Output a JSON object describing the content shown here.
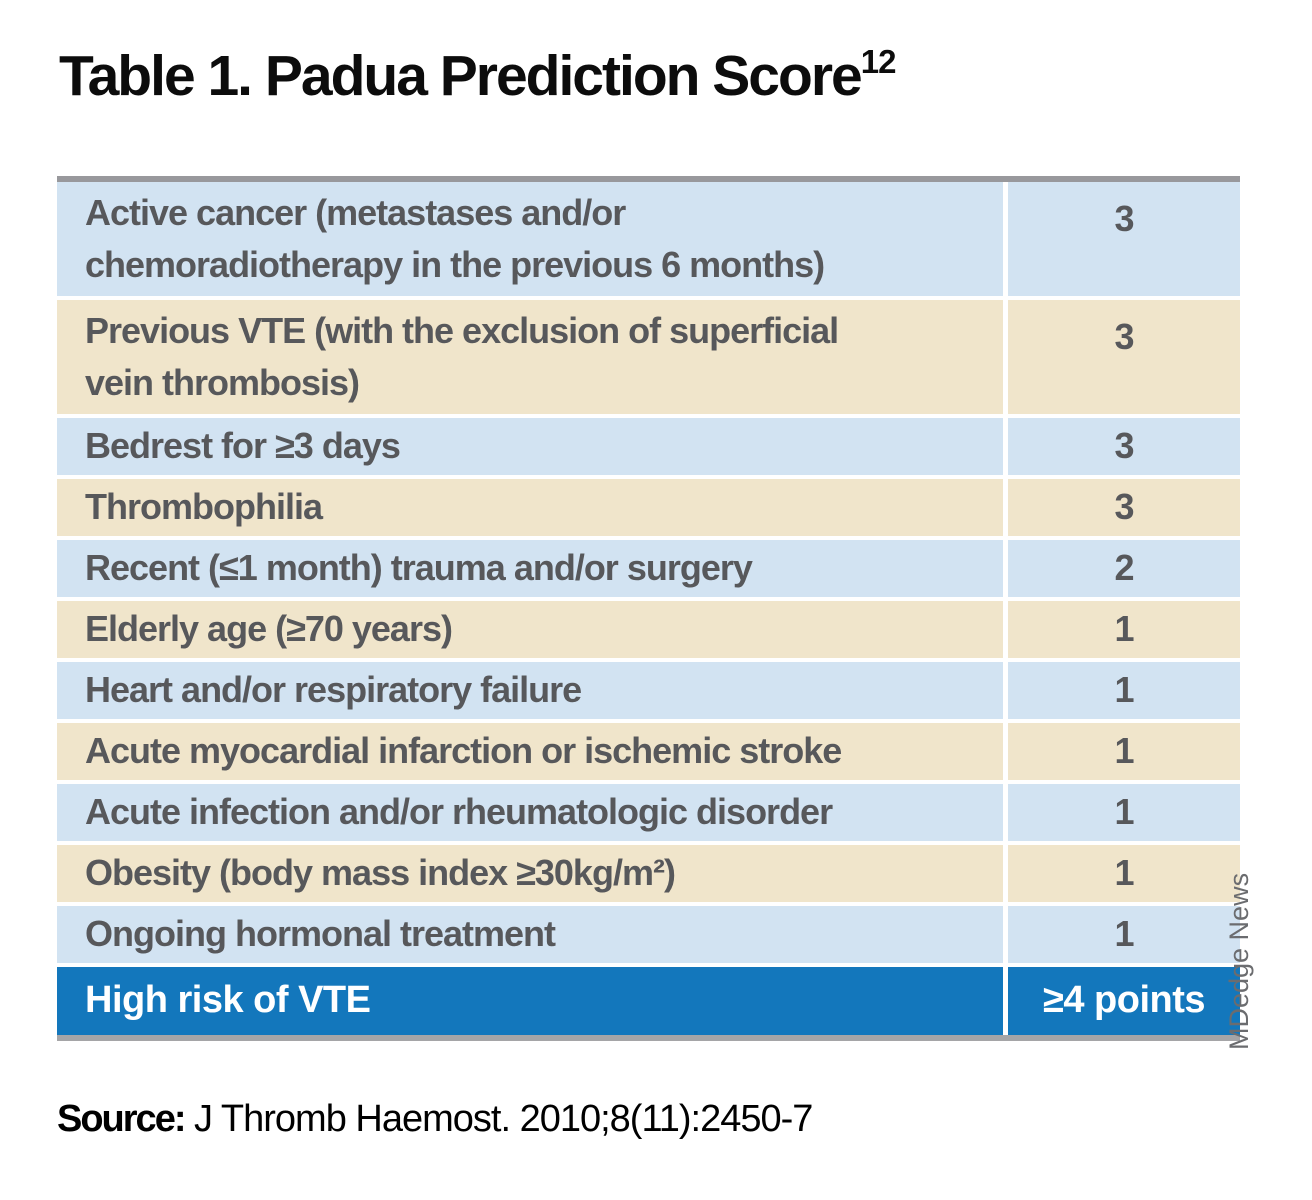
{
  "title": {
    "text": "Table 1. Padua Prediction Score",
    "superscript": "12"
  },
  "table": {
    "rows": [
      {
        "label": "Active cancer (metastases and/or\nchemoradiotherapy in the previous 6 months)",
        "points": "3"
      },
      {
        "label": "Previous VTE (with the exclusion of superficial\nvein thrombosis)",
        "points": "3"
      },
      {
        "label": "Bedrest for ≥3 days",
        "points": "3"
      },
      {
        "label": "Thrombophilia",
        "points": "3"
      },
      {
        "label": "Recent (≤1 month) trauma and/or surgery",
        "points": "2"
      },
      {
        "label": "Elderly age (≥70 years)",
        "points": "1"
      },
      {
        "label": "Heart and/or respiratory failure",
        "points": "1"
      },
      {
        "label": "Acute myocardial infarction or ischemic stroke",
        "points": "1"
      },
      {
        "label": "Acute infection and/or rheumatologic disorder",
        "points": "1"
      },
      {
        "label": "Obesity (body mass index ≥30kg/m²)",
        "points": "1"
      },
      {
        "label": "Ongoing hormonal treatment",
        "points": "1"
      }
    ],
    "footer": {
      "label": "High risk of VTE",
      "points": "≥4 points"
    }
  },
  "source": {
    "prefix": "Source:",
    "text": " J Thromb Haemost. 2010;8(11):2450-7"
  },
  "credit": "MDedge News",
  "colors": {
    "row_blue": "#d2e3f2",
    "row_tan": "#f0e5cb",
    "footer_blue": "#1377bc",
    "row_text_gray": "#57585b",
    "top_border_gray": "#98989c",
    "bottom_shadow_gray": "#a5a5a7"
  },
  "chart_data": {
    "type": "table",
    "title": "Table 1. Padua Prediction Score",
    "title_superscript": "12",
    "rows": [
      [
        "Active cancer (metastases and/or chemoradiotherapy in the previous 6 months)",
        3
      ],
      [
        "Previous VTE (with the exclusion of superficial vein thrombosis)",
        3
      ],
      [
        "Bedrest for ≥3 days",
        3
      ],
      [
        "Thrombophilia",
        3
      ],
      [
        "Recent (≤1 month) trauma and/or surgery",
        2
      ],
      [
        "Elderly age (≥70 years)",
        1
      ],
      [
        "Heart and/or respiratory failure",
        1
      ],
      [
        "Acute myocardial infarction or ischemic stroke",
        1
      ],
      [
        "Acute infection and/or rheumatologic disorder",
        1
      ],
      [
        "Obesity (body mass index ≥30kg/m²)",
        1
      ],
      [
        "Ongoing hormonal treatment",
        1
      ]
    ],
    "footer_row": [
      "High risk of VTE",
      "≥4 points"
    ],
    "source": "Source: J Thromb Haemost. 2010;8(11):2450-7",
    "credit": "MDedge News"
  }
}
